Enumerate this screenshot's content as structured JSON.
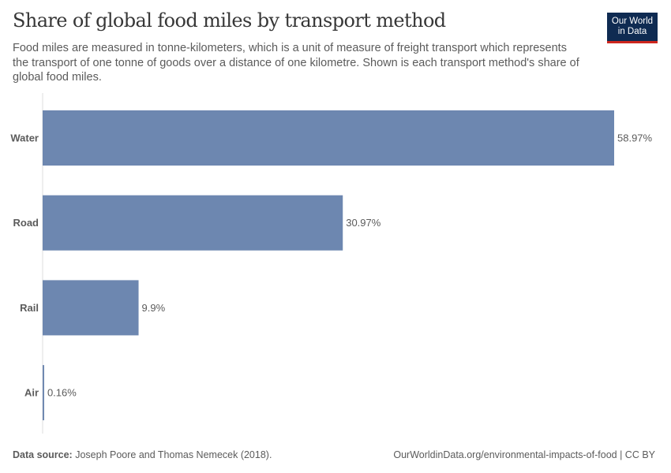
{
  "title": "Share of global food miles by transport method",
  "subtitle": "Food miles are measured in tonne-kilometers, which is a unit of measure of freight transport which represents the transport of one tonne of goods over a distance of one kilometre. Shown is each transport method's share of global food miles.",
  "logo": {
    "line1": "Our World",
    "line2": "in Data"
  },
  "footer": {
    "source_label": "Data source:",
    "source_text": " Joseph Poore and Thomas Nemecek (2018).",
    "url": "OurWorldinData.org/environmental-impacts-of-food | CC BY"
  },
  "chart_data": {
    "type": "bar",
    "orientation": "horizontal",
    "categories": [
      "Water",
      "Road",
      "Rail",
      "Air"
    ],
    "values": [
      58.97,
      30.97,
      9.9,
      0.16
    ],
    "data_labels": [
      "58.97%",
      "30.97%",
      "9.9%",
      "0.16%"
    ],
    "unit": "%",
    "bar_color": "#6d87b0",
    "grid": false,
    "legend": "none"
  }
}
